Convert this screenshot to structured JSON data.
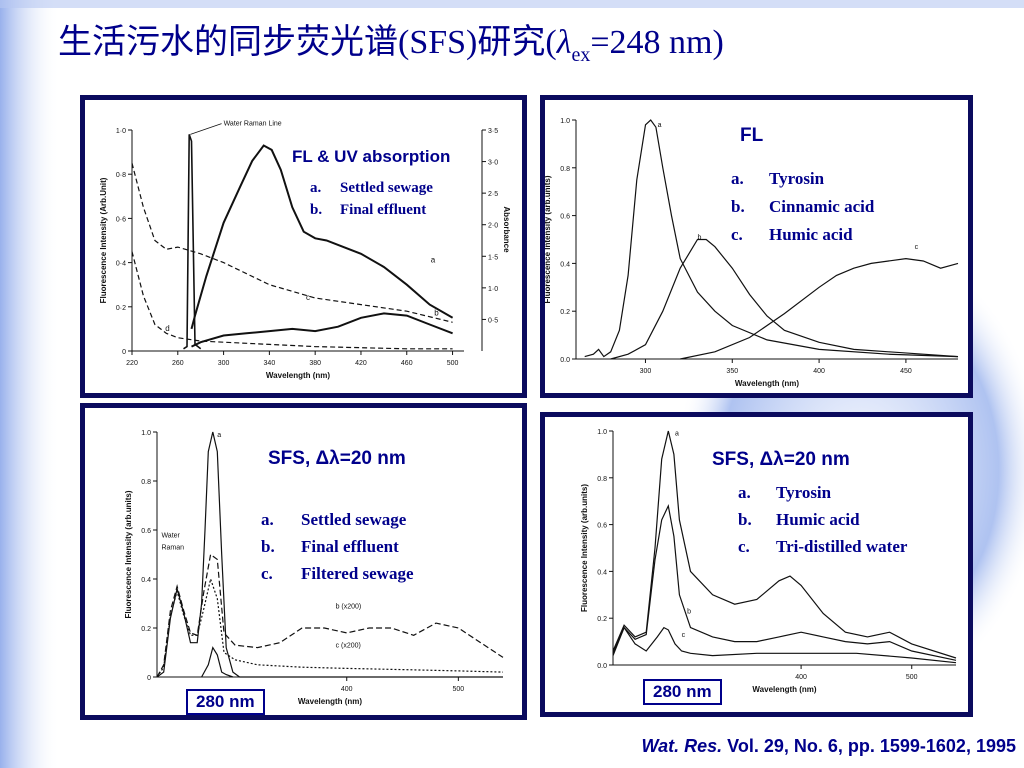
{
  "slide": {
    "title_prefix": "生活污水的同步荧光谱(SFS)研究(",
    "title_symbol": "λ",
    "title_sub": "ex",
    "title_suffix": "=248 nm)",
    "citation_journal": "Wat. Res.",
    "citation_rest": " Vol. 29, No. 6, pp. 1599-1602, 1995",
    "colors": {
      "title": "#00008b",
      "frame": "#0b0b5e",
      "ink": "#111111",
      "bg_accent": "#a9bdf0"
    }
  },
  "chart_data": [
    {
      "type": "line",
      "heading": "FL & UV absorption",
      "legend": [
        {
          "key": "a.",
          "text": "Settled sewage"
        },
        {
          "key": "b.",
          "text": "Final effluent"
        }
      ],
      "annotations": [
        "Water Raman Line",
        "a",
        "b",
        "c",
        "d"
      ],
      "xlabel": "Wavelength (nm)",
      "ylabel": "Fluorescence Intensity (Arb.Unit)",
      "y2label": "Absorbance",
      "xlim": [
        220,
        510
      ],
      "ylim": [
        0,
        1.0
      ],
      "y2lim": [
        0,
        3.5
      ],
      "xticks": [
        220,
        260,
        300,
        340,
        380,
        420,
        460,
        500
      ],
      "yticks": [
        "0",
        "0·2",
        "0·4",
        "0·6",
        "0·8",
        "1·0"
      ],
      "y2ticks": [
        "0·5",
        "1·0",
        "1·5",
        "2·0",
        "2·5",
        "3·0",
        "3·5"
      ],
      "series": [
        {
          "name": "a",
          "x": [
            272,
            275,
            285,
            300,
            315,
            325,
            335,
            342,
            350,
            360,
            370,
            380,
            390,
            400,
            420,
            440,
            460,
            480,
            500
          ],
          "y": [
            0.1,
            0.16,
            0.34,
            0.58,
            0.75,
            0.86,
            0.93,
            0.91,
            0.82,
            0.65,
            0.54,
            0.51,
            0.5,
            0.48,
            0.44,
            0.38,
            0.3,
            0.21,
            0.15
          ]
        },
        {
          "name": "b",
          "x": [
            272,
            280,
            300,
            320,
            340,
            360,
            380,
            400,
            420,
            440,
            460,
            480,
            500
          ],
          "y": [
            0.02,
            0.04,
            0.07,
            0.08,
            0.09,
            0.1,
            0.09,
            0.11,
            0.15,
            0.17,
            0.16,
            0.12,
            0.08
          ]
        },
        {
          "name": "c",
          "x": [
            220,
            230,
            240,
            250,
            260,
            280,
            300,
            340,
            380,
            420,
            460,
            500
          ],
          "y": [
            0.85,
            0.65,
            0.5,
            0.46,
            0.47,
            0.44,
            0.4,
            0.3,
            0.24,
            0.21,
            0.18,
            0.13
          ]
        },
        {
          "name": "d",
          "x": [
            220,
            230,
            240,
            250,
            260,
            280,
            300,
            340,
            380,
            420,
            460,
            500
          ],
          "y": [
            0.45,
            0.25,
            0.12,
            0.08,
            0.06,
            0.045,
            0.04,
            0.03,
            0.02,
            0.015,
            0.01,
            0.01
          ]
        },
        {
          "name": "Water Raman Line",
          "x": [
            265,
            268,
            270,
            272,
            275,
            280
          ],
          "y": [
            0.01,
            0.02,
            0.98,
            0.95,
            0.03,
            0.01
          ]
        }
      ]
    },
    {
      "type": "line",
      "heading": "FL",
      "legend": [
        {
          "key": "a.",
          "text": "Tyrosin"
        },
        {
          "key": "b.",
          "text": "Cinnamic acid"
        },
        {
          "key": "c.",
          "text": "Humic acid"
        }
      ],
      "annotations": [
        "a",
        "b",
        "c"
      ],
      "xlabel": "Wavelength (nm)",
      "ylabel": "Fluorescence Intensity (arb.units)",
      "xlim": [
        260,
        480
      ],
      "ylim": [
        0,
        1.0
      ],
      "xticks": [
        300,
        350,
        400,
        450
      ],
      "yticks": [
        "0.0",
        "0.2",
        "0.4",
        "0.6",
        "0.8",
        "1.0"
      ],
      "series": [
        {
          "name": "a",
          "x": [
            265,
            270,
            273,
            276,
            280,
            285,
            290,
            295,
            300,
            303,
            306,
            310,
            315,
            320,
            330,
            340,
            350,
            370,
            400,
            440,
            480
          ],
          "y": [
            0.01,
            0.02,
            0.04,
            0.01,
            0.03,
            0.12,
            0.35,
            0.75,
            0.98,
            1.0,
            0.97,
            0.8,
            0.6,
            0.42,
            0.28,
            0.2,
            0.14,
            0.08,
            0.04,
            0.02,
            0.01
          ]
        },
        {
          "name": "b",
          "x": [
            280,
            290,
            300,
            310,
            320,
            330,
            335,
            340,
            350,
            360,
            370,
            380,
            400,
            420,
            440,
            460,
            480
          ],
          "y": [
            0.0,
            0.02,
            0.06,
            0.2,
            0.38,
            0.5,
            0.5,
            0.47,
            0.38,
            0.27,
            0.18,
            0.12,
            0.07,
            0.04,
            0.03,
            0.02,
            0.01
          ]
        },
        {
          "name": "c",
          "x": [
            320,
            340,
            360,
            380,
            400,
            410,
            420,
            430,
            440,
            450,
            460,
            470,
            480
          ],
          "y": [
            0.0,
            0.03,
            0.09,
            0.19,
            0.3,
            0.35,
            0.38,
            0.4,
            0.41,
            0.42,
            0.41,
            0.38,
            0.4
          ]
        }
      ]
    },
    {
      "type": "line",
      "heading": "SFS, Δλ=20 nm",
      "legend": [
        {
          "key": "a.",
          "text": "Settled sewage"
        },
        {
          "key": "b.",
          "text": "Final effluent"
        },
        {
          "key": "c.",
          "text": "Filtered sewage"
        }
      ],
      "annotations": [
        "a",
        "Water",
        "Raman",
        "b (x200)",
        "c (x200)"
      ],
      "tag": "280 nm",
      "xlabel": "Wavelength (nm)",
      "ylabel": "Fluorescence Intensity (arb.units)",
      "xlim": [
        230,
        540
      ],
      "ylim": [
        0,
        1.0
      ],
      "xticks": [
        400,
        500
      ],
      "yticks": [
        "0",
        "0.2",
        "0.4",
        "0.6",
        "0.8",
        "1.0"
      ],
      "series": [
        {
          "name": "a",
          "x": [
            230,
            236,
            242,
            248,
            254,
            260,
            266,
            270,
            273,
            276,
            280,
            284,
            288,
            292,
            298,
            304,
            320,
            360,
            400,
            480,
            540
          ],
          "y": [
            0.0,
            0.02,
            0.24,
            0.36,
            0.26,
            0.14,
            0.14,
            0.3,
            0.6,
            0.92,
            1.0,
            0.92,
            0.5,
            0.12,
            0.02,
            0.0,
            0.0,
            0.0,
            0.0,
            0.0,
            0.0
          ]
        },
        {
          "name": "b",
          "x": [
            230,
            236,
            242,
            248,
            254,
            260,
            266,
            272,
            278,
            284,
            290,
            300,
            320,
            340,
            360,
            380,
            400,
            420,
            440,
            460,
            480,
            500,
            520,
            540
          ],
          "y": [
            0.0,
            0.05,
            0.27,
            0.37,
            0.27,
            0.18,
            0.17,
            0.35,
            0.5,
            0.48,
            0.18,
            0.13,
            0.12,
            0.14,
            0.2,
            0.2,
            0.18,
            0.2,
            0.2,
            0.17,
            0.22,
            0.2,
            0.14,
            0.08
          ]
        },
        {
          "name": "c",
          "x": [
            230,
            236,
            242,
            248,
            254,
            260,
            266,
            272,
            278,
            284,
            290,
            300,
            320,
            360,
            400,
            450,
            500,
            540
          ],
          "y": [
            0.0,
            0.04,
            0.25,
            0.35,
            0.25,
            0.17,
            0.17,
            0.28,
            0.4,
            0.32,
            0.1,
            0.07,
            0.05,
            0.04,
            0.035,
            0.03,
            0.025,
            0.02
          ]
        },
        {
          "name": "Water Raman",
          "x": [
            270,
            276,
            280,
            284,
            288,
            292,
            298
          ],
          "y": [
            0.0,
            0.05,
            0.12,
            0.09,
            0.02,
            0.01,
            0.0
          ]
        }
      ]
    },
    {
      "type": "line",
      "heading": "SFS, Δλ=20 nm",
      "legend": [
        {
          "key": "a.",
          "text": "Tyrosin"
        },
        {
          "key": "b.",
          "text": "Humic acid"
        },
        {
          "key": "c.",
          "text": "Tri-distilled water"
        }
      ],
      "annotations": [
        "a",
        "b",
        "c"
      ],
      "tag": "280 nm",
      "xlabel": "Wavelength (nm)",
      "ylabel": "Fluorescence Intensity (arb.units)",
      "xlim": [
        230,
        540
      ],
      "ylim": [
        0,
        1.0
      ],
      "xticks": [
        400,
        500
      ],
      "yticks": [
        "0.0",
        "0.2",
        "0.4",
        "0.6",
        "0.8",
        "1.0"
      ],
      "series": [
        {
          "name": "a",
          "x": [
            230,
            240,
            250,
            260,
            268,
            274,
            280,
            285,
            290,
            300,
            320,
            340,
            360,
            380,
            390,
            400,
            420,
            440,
            460,
            480,
            500,
            540
          ],
          "y": [
            0.06,
            0.17,
            0.12,
            0.14,
            0.5,
            0.88,
            1.0,
            0.9,
            0.62,
            0.4,
            0.3,
            0.26,
            0.28,
            0.36,
            0.38,
            0.34,
            0.22,
            0.14,
            0.12,
            0.14,
            0.09,
            0.03
          ]
        },
        {
          "name": "b",
          "x": [
            230,
            240,
            250,
            260,
            268,
            274,
            280,
            285,
            290,
            300,
            320,
            340,
            360,
            380,
            400,
            420,
            440,
            460,
            480,
            500,
            540
          ],
          "y": [
            0.05,
            0.16,
            0.11,
            0.13,
            0.45,
            0.62,
            0.68,
            0.55,
            0.3,
            0.16,
            0.12,
            0.1,
            0.1,
            0.12,
            0.14,
            0.12,
            0.1,
            0.09,
            0.1,
            0.06,
            0.02
          ]
        },
        {
          "name": "c",
          "x": [
            230,
            240,
            250,
            260,
            270,
            276,
            280,
            286,
            292,
            300,
            320,
            360,
            400,
            450,
            500,
            540
          ],
          "y": [
            0.04,
            0.16,
            0.09,
            0.06,
            0.12,
            0.16,
            0.15,
            0.09,
            0.06,
            0.05,
            0.04,
            0.05,
            0.05,
            0.05,
            0.03,
            0.01
          ]
        }
      ]
    }
  ]
}
